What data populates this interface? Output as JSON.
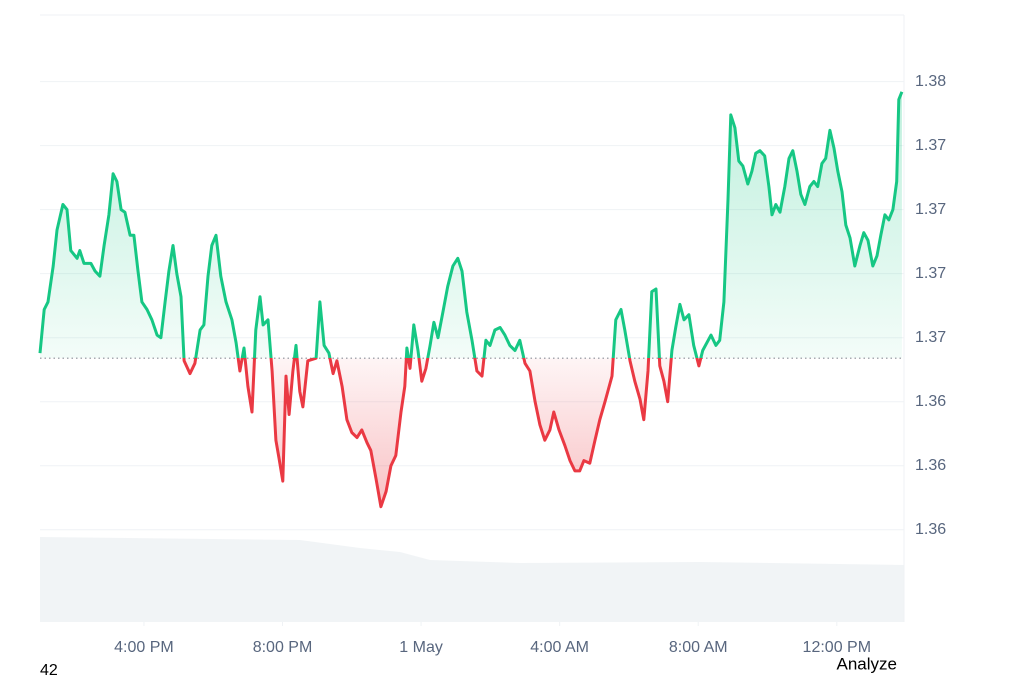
{
  "chart_data": {
    "type": "baseline-line",
    "x": [
      13.0,
      13.12,
      13.23,
      13.38,
      13.49,
      13.66,
      13.78,
      13.89,
      14.07,
      14.15,
      14.27,
      14.47,
      14.59,
      14.73,
      14.85,
      14.99,
      15.11,
      15.22,
      15.34,
      15.45,
      15.6,
      15.71,
      15.83,
      15.94,
      16.09,
      16.23,
      16.38,
      16.49,
      16.61,
      16.72,
      16.84,
      16.95,
      17.07,
      17.16,
      17.33,
      17.47,
      17.62,
      17.73,
      17.85,
      17.96,
      18.08,
      18.22,
      18.37,
      18.54,
      18.66,
      18.77,
      18.89,
      19.0,
      19.12,
      19.23,
      19.35,
      19.44,
      19.58,
      19.7,
      19.81,
      19.9,
      20.01,
      20.1,
      20.19,
      20.3,
      20.39,
      20.5,
      20.59,
      20.73,
      20.97,
      21.08,
      21.2,
      21.34,
      21.46,
      21.57,
      21.72,
      21.86,
      22.0,
      22.15,
      22.29,
      22.44,
      22.55,
      22.7,
      22.84,
      22.99,
      23.13,
      23.27,
      23.42,
      23.53,
      23.59,
      23.68,
      23.79,
      23.91,
      24.02,
      24.14,
      24.26,
      24.37,
      24.49,
      24.63,
      24.77,
      24.92,
      25.06,
      25.18,
      25.32,
      25.47,
      25.61,
      25.76,
      25.87,
      25.99,
      26.13,
      26.28,
      26.42,
      26.56,
      26.71,
      26.85,
      27.0,
      27.14,
      27.29,
      27.43,
      27.57,
      27.72,
      27.83,
      27.98,
      28.15,
      28.3,
      28.44,
      28.58,
      28.7,
      28.87,
      29.02,
      29.16,
      29.31,
      29.39,
      29.51,
      29.62,
      29.77,
      29.88,
      30.03,
      30.17,
      30.32,
      30.43,
      30.55,
      30.66,
      30.78,
      30.89,
      31.01,
      31.12,
      31.24,
      31.35,
      31.47,
      31.59,
      31.73,
      31.87,
      32.02,
      32.13,
      32.37,
      32.51,
      32.62,
      32.74,
      32.86,
      32.94,
      33.06,
      33.17,
      33.29,
      33.43,
      33.55,
      33.66,
      33.78,
      33.92,
      34.04,
      34.13,
      34.24,
      34.36,
      34.5,
      34.62,
      34.73,
      34.85,
      34.96,
      35.08,
      35.22,
      35.34,
      35.45,
      35.57,
      35.68,
      35.8,
      35.92,
      36.03,
      36.15,
      36.26,
      36.38,
      36.52,
      36.67,
      36.78,
      36.9,
      37.04,
      37.16,
      37.27,
      37.39,
      37.5,
      37.62,
      37.73,
      37.79,
      37.88
    ],
    "values": [
      1.3669,
      1.3686,
      1.3689,
      1.3703,
      1.3717,
      1.3727,
      1.3725,
      1.3709,
      1.3706,
      1.3709,
      1.3704,
      1.3704,
      1.3701,
      1.3699,
      1.3711,
      1.3723,
      1.3739,
      1.3736,
      1.3725,
      1.3724,
      1.3715,
      1.3715,
      1.3701,
      1.3689,
      1.3686,
      1.3682,
      1.3676,
      1.3675,
      1.3689,
      1.3701,
      1.3711,
      1.37,
      1.3691,
      1.3666,
      1.3661,
      1.3665,
      1.3678,
      1.368,
      1.3699,
      1.3711,
      1.3715,
      1.3699,
      1.3689,
      1.3682,
      1.3673,
      1.3662,
      1.3671,
      1.3656,
      1.3646,
      1.3678,
      1.3691,
      1.368,
      1.3682,
      1.3662,
      1.3635,
      1.3628,
      1.3619,
      1.366,
      1.3645,
      1.3662,
      1.3672,
      1.3654,
      1.3648,
      1.3666,
      1.3667,
      1.3689,
      1.3672,
      1.3669,
      1.3661,
      1.3666,
      1.3656,
      1.3643,
      1.3638,
      1.3636,
      1.3639,
      1.3634,
      1.3631,
      1.362,
      1.3609,
      1.3615,
      1.3625,
      1.3629,
      1.3646,
      1.3656,
      1.3671,
      1.3663,
      1.368,
      1.367,
      1.3658,
      1.3663,
      1.3672,
      1.3681,
      1.3675,
      1.3685,
      1.3695,
      1.3703,
      1.3706,
      1.3701,
      1.3685,
      1.3674,
      1.3662,
      1.366,
      1.3674,
      1.3672,
      1.3678,
      1.3679,
      1.3676,
      1.3672,
      1.367,
      1.3674,
      1.3665,
      1.3662,
      1.365,
      1.3641,
      1.3635,
      1.3639,
      1.3646,
      1.3639,
      1.3633,
      1.3627,
      1.3623,
      1.3623,
      1.3627,
      1.3626,
      1.3635,
      1.3643,
      1.365,
      1.3654,
      1.366,
      1.3682,
      1.3686,
      1.3678,
      1.3666,
      1.3658,
      1.3651,
      1.3643,
      1.3662,
      1.3693,
      1.3694,
      1.3664,
      1.3658,
      1.365,
      1.367,
      1.3679,
      1.3688,
      1.3682,
      1.3684,
      1.3672,
      1.3664,
      1.367,
      1.3676,
      1.3672,
      1.3674,
      1.3689,
      1.3729,
      1.3762,
      1.3757,
      1.3744,
      1.3742,
      1.3735,
      1.374,
      1.3747,
      1.3748,
      1.3746,
      1.3734,
      1.3723,
      1.3727,
      1.3724,
      1.3734,
      1.3745,
      1.3748,
      1.374,
      1.3731,
      1.3727,
      1.3734,
      1.3736,
      1.3734,
      1.3743,
      1.3745,
      1.3756,
      1.3749,
      1.374,
      1.3732,
      1.3719,
      1.3714,
      1.3703,
      1.3711,
      1.3716,
      1.3713,
      1.3703,
      1.3707,
      1.3715,
      1.3723,
      1.3721,
      1.3725,
      1.3736,
      1.3768,
      1.3771
    ],
    "baseline": 1.3667,
    "up_color": "#16c784",
    "down_color": "#ea3943",
    "xlim": [
      13,
      37.94
    ],
    "xticks": [
      {
        "value": 16,
        "label": "4:00 PM"
      },
      {
        "value": 20,
        "label": "8:00 PM"
      },
      {
        "value": 24,
        "label": "1 May"
      },
      {
        "value": 28,
        "label": "4:00 AM"
      },
      {
        "value": 32,
        "label": "8:00 AM"
      },
      {
        "value": 36,
        "label": "12:00 PM"
      }
    ],
    "ylim": [
      1.3564,
      1.3801
    ],
    "yticks": [
      1.36,
      {
        "value": 1.3625,
        "label": "1.36"
      },
      {
        "value": 1.365,
        "label": "1.36"
      },
      {
        "value": 1.3675,
        "label": "1.37"
      },
      1.37,
      {
        "value": 1.3725,
        "label": "1.37"
      },
      {
        "value": 1.375,
        "label": "1.37"
      },
      {
        "value": 1.3775,
        "label": "1.38"
      }
    ],
    "grid": true,
    "footer_left": "42",
    "footer_right": "Analyze"
  }
}
